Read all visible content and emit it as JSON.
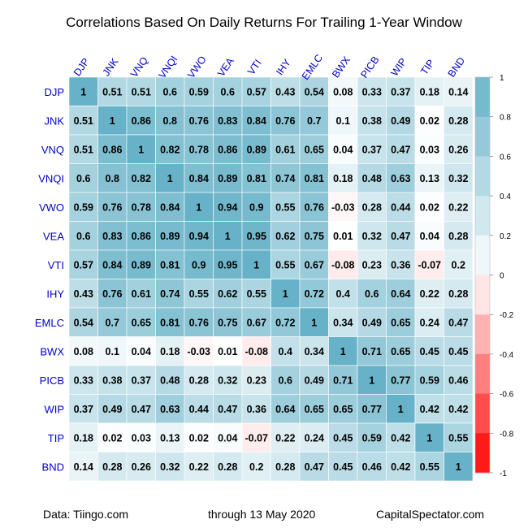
{
  "chart_data": {
    "type": "heatmap",
    "title": "Correlations Based On Daily Returns For Trailing 1-Year Window",
    "labels": [
      "DJP",
      "JNK",
      "VNQ",
      "VNQI",
      "VWO",
      "VEA",
      "VTI",
      "IHY",
      "EMLC",
      "BWX",
      "PICB",
      "WIP",
      "TIP",
      "BND"
    ],
    "matrix": [
      [
        1,
        0.51,
        0.51,
        0.6,
        0.59,
        0.6,
        0.57,
        0.43,
        0.54,
        0.08,
        0.33,
        0.37,
        0.18,
        0.14
      ],
      [
        0.51,
        1,
        0.86,
        0.8,
        0.76,
        0.83,
        0.84,
        0.76,
        0.7,
        0.1,
        0.38,
        0.49,
        0.02,
        0.28
      ],
      [
        0.51,
        0.86,
        1,
        0.82,
        0.78,
        0.86,
        0.89,
        0.61,
        0.65,
        0.04,
        0.37,
        0.47,
        0.03,
        0.26
      ],
      [
        0.6,
        0.8,
        0.82,
        1,
        0.84,
        0.89,
        0.81,
        0.74,
        0.81,
        0.18,
        0.48,
        0.63,
        0.13,
        0.32
      ],
      [
        0.59,
        0.76,
        0.78,
        0.84,
        1,
        0.94,
        0.9,
        0.55,
        0.76,
        -0.03,
        0.28,
        0.44,
        0.02,
        0.22
      ],
      [
        0.6,
        0.83,
        0.86,
        0.89,
        0.94,
        1,
        0.95,
        0.62,
        0.75,
        0.01,
        0.32,
        0.47,
        0.04,
        0.28
      ],
      [
        0.57,
        0.84,
        0.89,
        0.81,
        0.9,
        0.95,
        1,
        0.55,
        0.67,
        -0.08,
        0.23,
        0.36,
        -0.07,
        0.2
      ],
      [
        0.43,
        0.76,
        0.61,
        0.74,
        0.55,
        0.62,
        0.55,
        1,
        0.72,
        0.4,
        0.6,
        0.64,
        0.22,
        0.28
      ],
      [
        0.54,
        0.7,
        0.65,
        0.81,
        0.76,
        0.75,
        0.67,
        0.72,
        1,
        0.34,
        0.49,
        0.65,
        0.24,
        0.47
      ],
      [
        0.08,
        0.1,
        0.04,
        0.18,
        -0.03,
        0.01,
        -0.08,
        0.4,
        0.34,
        1,
        0.71,
        0.65,
        0.45,
        0.45
      ],
      [
        0.33,
        0.38,
        0.37,
        0.48,
        0.28,
        0.32,
        0.23,
        0.6,
        0.49,
        0.71,
        1,
        0.77,
        0.59,
        0.46
      ],
      [
        0.37,
        0.49,
        0.47,
        0.63,
        0.44,
        0.47,
        0.36,
        0.64,
        0.65,
        0.65,
        0.77,
        1,
        0.42,
        0.42
      ],
      [
        0.18,
        0.02,
        0.03,
        0.13,
        0.02,
        0.04,
        -0.07,
        0.22,
        0.24,
        0.45,
        0.59,
        0.42,
        1,
        0.55
      ],
      [
        0.14,
        0.28,
        0.26,
        0.32,
        0.22,
        0.28,
        0.2,
        0.28,
        0.47,
        0.45,
        0.46,
        0.42,
        0.55,
        1
      ]
    ],
    "colorbar": {
      "range": [
        -1,
        1
      ],
      "ticks": [
        "1",
        "0.8",
        "0.6",
        "0.4",
        "0.2",
        "0",
        "-0.2",
        "-0.4",
        "-0.6",
        "-0.8",
        "-1"
      ],
      "positive_color": "#67b2c8",
      "negative_color": "#ff0000",
      "neutral_color": "#ffffff"
    },
    "label_color": "#0000cc",
    "legend": "right"
  },
  "footer": {
    "source": "Data: Tiingo.com",
    "period": "through 13 May 2020",
    "site": "CapitalSpectator.com"
  }
}
